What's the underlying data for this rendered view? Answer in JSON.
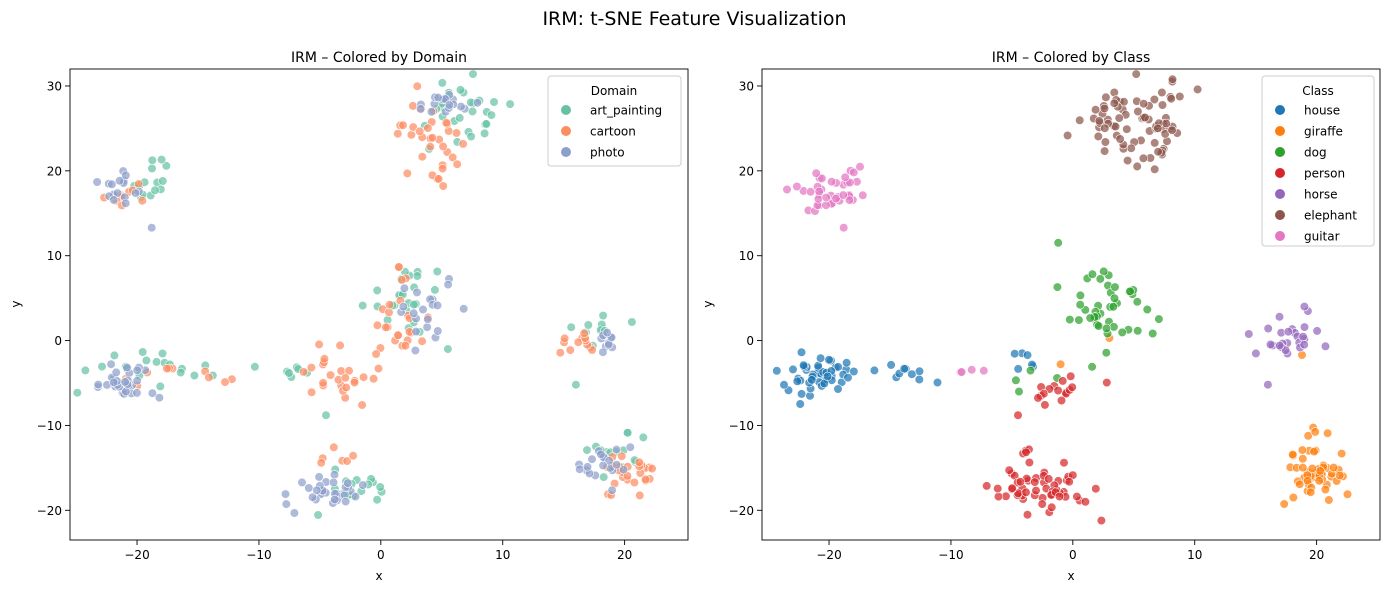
{
  "figure": {
    "suptitle": "IRM: t-SNE Feature Visualization"
  },
  "chart_data": [
    {
      "type": "scatter",
      "title": "IRM – Colored by Domain",
      "xlabel": "x",
      "ylabel": "y",
      "xlim": [
        -25.5,
        25.2
      ],
      "ylim": [
        -23.5,
        32
      ],
      "xticks": [
        -20,
        -10,
        0,
        10,
        20
      ],
      "yticks": [
        -20,
        -10,
        0,
        10,
        20,
        30
      ],
      "grid": false,
      "legend": {
        "title": "Domain",
        "placement": "top-right"
      },
      "series": [
        {
          "name": "art_painting",
          "color": "#66c2a5",
          "clusters": [
            {
              "cx": 6.5,
              "cy": 26.5,
              "sx": 2.2,
              "sy": 2.2,
              "n": 28
            },
            {
              "cx": -18.8,
              "cy": 18.5,
              "sx": 1.0,
              "sy": 1.6,
              "n": 14
            },
            {
              "cx": -21.0,
              "cy": -2.0,
              "sx": 2.2,
              "sy": 1.5,
              "n": 12
            },
            {
              "cx": -15.0,
              "cy": -3.2,
              "sx": 2.0,
              "sy": 0.7,
              "n": 8
            },
            {
              "cx": -7.5,
              "cy": -3.7,
              "sx": 1.5,
              "sy": 0.4,
              "n": 6
            },
            {
              "cx": 2.2,
              "cy": 5.8,
              "sx": 1.8,
              "sy": 1.8,
              "n": 24
            },
            {
              "cx": 18.5,
              "cy": 1.2,
              "sx": 1.2,
              "sy": 1.5,
              "n": 10
            },
            {
              "cx": 19.5,
              "cy": -13.5,
              "sx": 1.3,
              "sy": 1.3,
              "n": 14
            },
            {
              "cx": -1.5,
              "cy": -17.5,
              "sx": 1.4,
              "sy": 1.5,
              "n": 16
            }
          ],
          "points": [
            [
              -4.5,
              -8.8
            ],
            [
              16.0,
              -5.2
            ],
            [
              5.5,
              -1.0
            ]
          ]
        },
        {
          "name": "cartoon",
          "color": "#fc8d62",
          "clusters": [
            {
              "cx": 3.8,
              "cy": 24.5,
              "sx": 1.5,
              "sy": 2.0,
              "n": 34
            },
            {
              "cx": -21.0,
              "cy": 16.8,
              "sx": 1.1,
              "sy": 0.7,
              "n": 10
            },
            {
              "cx": -16.5,
              "cy": -4.5,
              "sx": 2.0,
              "sy": 0.8,
              "n": 10
            },
            {
              "cx": 1.0,
              "cy": 1.0,
              "sx": 1.3,
              "sy": 3.0,
              "n": 28
            },
            {
              "cx": -3.5,
              "cy": -4.5,
              "sx": 2.0,
              "sy": 1.8,
              "n": 22
            },
            {
              "cx": 16.0,
              "cy": 0.0,
              "sx": 1.0,
              "sy": 0.7,
              "n": 12
            },
            {
              "cx": 20.5,
              "cy": -16.5,
              "sx": 1.1,
              "sy": 1.3,
              "n": 26
            },
            {
              "cx": -3.8,
              "cy": -13.3,
              "sx": 0.7,
              "sy": 0.6,
              "n": 6
            }
          ],
          "points": []
        },
        {
          "name": "photo",
          "color": "#8da0cb",
          "clusters": [
            {
              "cx": 5.5,
              "cy": 27.8,
              "sx": 1.3,
              "sy": 0.8,
              "n": 18
            },
            {
              "cx": -21.2,
              "cy": 18.2,
              "sx": 1.3,
              "sy": 1.0,
              "n": 16
            },
            {
              "cx": -21.0,
              "cy": -4.8,
              "sx": 1.5,
              "sy": 1.0,
              "n": 34
            },
            {
              "cx": 4.0,
              "cy": 3.5,
              "sx": 1.3,
              "sy": 1.8,
              "n": 20
            },
            {
              "cx": -4.5,
              "cy": -17.8,
              "sx": 1.4,
              "sy": 1.1,
              "n": 34
            },
            {
              "cx": 18.5,
              "cy": -14.5,
              "sx": 1.0,
              "sy": 1.2,
              "n": 20
            },
            {
              "cx": 18.8,
              "cy": 0.3,
              "sx": 0.8,
              "sy": 0.8,
              "n": 10
            }
          ],
          "points": [
            [
              -18.8,
              13.3
            ]
          ]
        }
      ]
    },
    {
      "type": "scatter",
      "title": "IRM – Colored by Class",
      "xlabel": "x",
      "ylabel": "y",
      "xlim": [
        -25.5,
        25.2
      ],
      "ylim": [
        -23.5,
        32
      ],
      "xticks": [
        -20,
        -10,
        0,
        10,
        20
      ],
      "yticks": [
        -20,
        -10,
        0,
        10,
        20,
        30
      ],
      "grid": false,
      "legend": {
        "title": "Class",
        "placement": "top-right"
      },
      "series": [
        {
          "name": "house",
          "color": "#1f77b4",
          "clusters": [
            {
              "cx": -20.8,
              "cy": -4.2,
              "sx": 1.6,
              "sy": 1.3,
              "n": 50
            },
            {
              "cx": -15.0,
              "cy": -3.2,
              "sx": 1.6,
              "sy": 0.7,
              "n": 10
            },
            {
              "cx": -3.5,
              "cy": -2.5,
              "sx": 1.2,
              "sy": 0.9,
              "n": 6
            }
          ],
          "points": []
        },
        {
          "name": "giraffe",
          "color": "#ff7f0e",
          "clusters": [
            {
              "cx": 19.8,
              "cy": -15.5,
              "sx": 1.3,
              "sy": 1.8,
              "n": 55
            }
          ],
          "points": [
            [
              18.8,
              -1.7
            ],
            [
              3.0,
              0.3
            ],
            [
              -1.0,
              -2.8
            ]
          ]
        },
        {
          "name": "dog",
          "color": "#2ca02c",
          "clusters": [
            {
              "cx": 2.8,
              "cy": 4.0,
              "sx": 1.8,
              "sy": 2.4,
              "n": 44
            },
            {
              "cx": -2.5,
              "cy": -4.5,
              "sx": 1.4,
              "sy": 0.7,
              "n": 5
            }
          ],
          "points": []
        },
        {
          "name": "person",
          "color": "#d62728",
          "clusters": [
            {
              "cx": -3.0,
              "cy": -17.5,
              "sx": 2.0,
              "sy": 1.4,
              "n": 54
            },
            {
              "cx": -1.5,
              "cy": -5.8,
              "sx": 1.1,
              "sy": 1.0,
              "n": 16
            },
            {
              "cx": -3.8,
              "cy": -13.5,
              "sx": 0.7,
              "sy": 0.5,
              "n": 5
            }
          ],
          "points": [
            [
              -4.5,
              -8.8
            ]
          ]
        },
        {
          "name": "horse",
          "color": "#9467bd",
          "clusters": [
            {
              "cx": 18.0,
              "cy": 0.5,
              "sx": 1.3,
              "sy": 1.2,
              "n": 26
            }
          ],
          "points": [
            [
              16.0,
              -5.2
            ],
            [
              19.0,
              4.0
            ]
          ]
        },
        {
          "name": "elephant",
          "color": "#8c564b",
          "clusters": [
            {
              "cx": 5.8,
              "cy": 26.0,
              "sx": 2.3,
              "sy": 2.3,
              "n": 80
            }
          ],
          "points": []
        },
        {
          "name": "guitar",
          "color": "#e377c2",
          "clusters": [
            {
              "cx": -20.0,
              "cy": 17.8,
              "sx": 1.4,
              "sy": 1.3,
              "n": 40
            },
            {
              "cx": -8.0,
              "cy": -3.7,
              "sx": 1.2,
              "sy": 0.3,
              "n": 4
            }
          ],
          "points": [
            [
              -18.8,
              13.3
            ]
          ]
        }
      ]
    }
  ]
}
